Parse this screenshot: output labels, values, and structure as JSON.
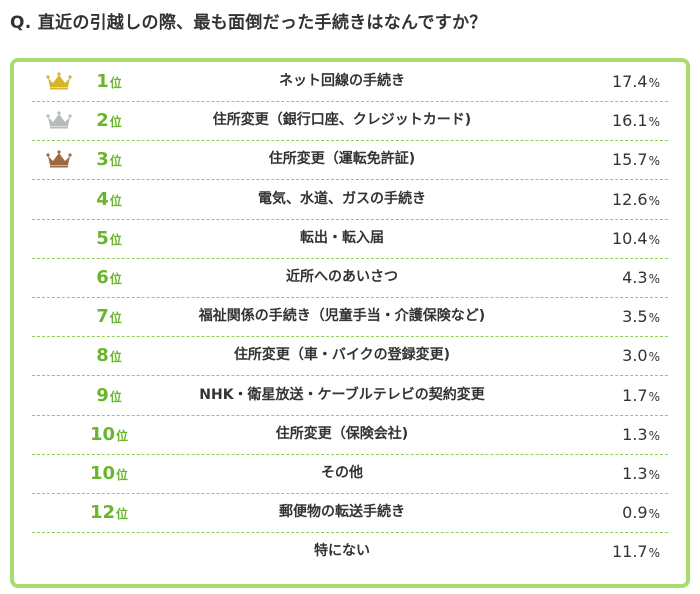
{
  "question": "Q. 直近の引越しの際、最も面倒だった手続きはなんですか？",
  "colors": {
    "border": "#a8dc6e",
    "rank": "#6ab52d",
    "gold": "#d4b52b",
    "silver": "#b7bcb9",
    "bronze": "#9a6b43"
  },
  "chart_data": {
    "type": "table",
    "title": "Q. 直近の引越しの際、最も面倒だった手続きはなんですか？",
    "rank_suffix": "位",
    "unit": "%",
    "rows": [
      {
        "rank": "1",
        "crown": "gold",
        "label": "ネット回線の手続き",
        "value": "17.4"
      },
      {
        "rank": "2",
        "crown": "silver",
        "label": "住所変更（銀行口座、クレジットカード)",
        "value": "16.1"
      },
      {
        "rank": "3",
        "crown": "bronze",
        "label": "住所変更（運転免許証)",
        "value": "15.7"
      },
      {
        "rank": "4",
        "crown": "",
        "label": "電気、水道、ガスの手続き",
        "value": "12.6"
      },
      {
        "rank": "5",
        "crown": "",
        "label": "転出・転入届",
        "value": "10.4"
      },
      {
        "rank": "6",
        "crown": "",
        "label": "近所へのあいさつ",
        "value": "4.3"
      },
      {
        "rank": "7",
        "crown": "",
        "label": "福祉関係の手続き（児童手当・介護保険など)",
        "value": "3.5"
      },
      {
        "rank": "8",
        "crown": "",
        "label": "住所変更（車・バイクの登録変更)",
        "value": "3.0"
      },
      {
        "rank": "9",
        "crown": "",
        "label": "NHK・衛星放送・ケーブルテレビの契約変更",
        "value": "1.7"
      },
      {
        "rank": "10",
        "crown": "",
        "label": "住所変更（保険会社)",
        "value": "1.3"
      },
      {
        "rank": "10",
        "crown": "",
        "label": "その他",
        "value": "1.3"
      },
      {
        "rank": "12",
        "crown": "",
        "label": "郵便物の転送手続き",
        "value": "0.9"
      },
      {
        "rank": "",
        "crown": "",
        "label": "特にない",
        "value": "11.7"
      }
    ]
  }
}
